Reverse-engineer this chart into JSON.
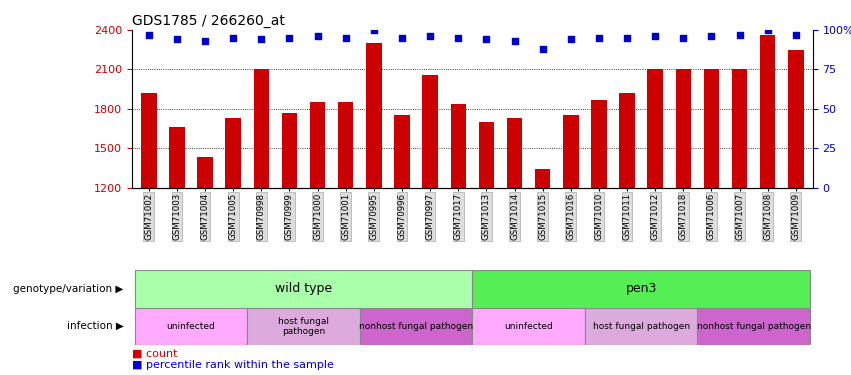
{
  "title": "GDS1785 / 266260_at",
  "samples": [
    "GSM71002",
    "GSM71003",
    "GSM71004",
    "GSM71005",
    "GSM70998",
    "GSM70999",
    "GSM71000",
    "GSM71001",
    "GSM70995",
    "GSM70996",
    "GSM70997",
    "GSM71017",
    "GSM71013",
    "GSM71014",
    "GSM71015",
    "GSM71016",
    "GSM71010",
    "GSM71011",
    "GSM71012",
    "GSM71018",
    "GSM71006",
    "GSM71007",
    "GSM71008",
    "GSM71009"
  ],
  "counts": [
    1920,
    1660,
    1430,
    1730,
    2100,
    1770,
    1850,
    1850,
    2300,
    1750,
    2060,
    1840,
    1700,
    1730,
    1340,
    1750,
    1870,
    1920,
    2100,
    2100,
    2100,
    2100,
    2360,
    2250
  ],
  "percentiles": [
    97,
    94,
    93,
    95,
    94,
    95,
    96,
    95,
    100,
    95,
    96,
    95,
    94,
    93,
    88,
    94,
    95,
    95,
    96,
    95,
    96,
    97,
    100,
    97
  ],
  "ylim_left": [
    1200,
    2400
  ],
  "ylim_right": [
    0,
    100
  ],
  "yticks_left": [
    1200,
    1500,
    1800,
    2100,
    2400
  ],
  "yticks_right": [
    0,
    25,
    50,
    75,
    100
  ],
  "bar_color": "#cc0000",
  "dot_color": "#0000cc",
  "grid_yticks": [
    1500,
    1800,
    2100
  ],
  "genotype_groups": [
    {
      "label": "wild type",
      "start": 0,
      "end": 11,
      "color": "#aaffaa"
    },
    {
      "label": "pen3",
      "start": 12,
      "end": 23,
      "color": "#55ee55"
    }
  ],
  "infection_groups": [
    {
      "label": "uninfected",
      "start": 0,
      "end": 3,
      "color": "#ffaaff"
    },
    {
      "label": "host fungal\npathogen",
      "start": 4,
      "end": 7,
      "color": "#ddaadd"
    },
    {
      "label": "nonhost fungal pathogen",
      "start": 8,
      "end": 11,
      "color": "#cc66cc"
    },
    {
      "label": "uninfected",
      "start": 12,
      "end": 15,
      "color": "#ffaaff"
    },
    {
      "label": "host fungal pathogen",
      "start": 16,
      "end": 19,
      "color": "#ddaadd"
    },
    {
      "label": "nonhost fungal pathogen",
      "start": 20,
      "end": 23,
      "color": "#cc66cc"
    }
  ]
}
